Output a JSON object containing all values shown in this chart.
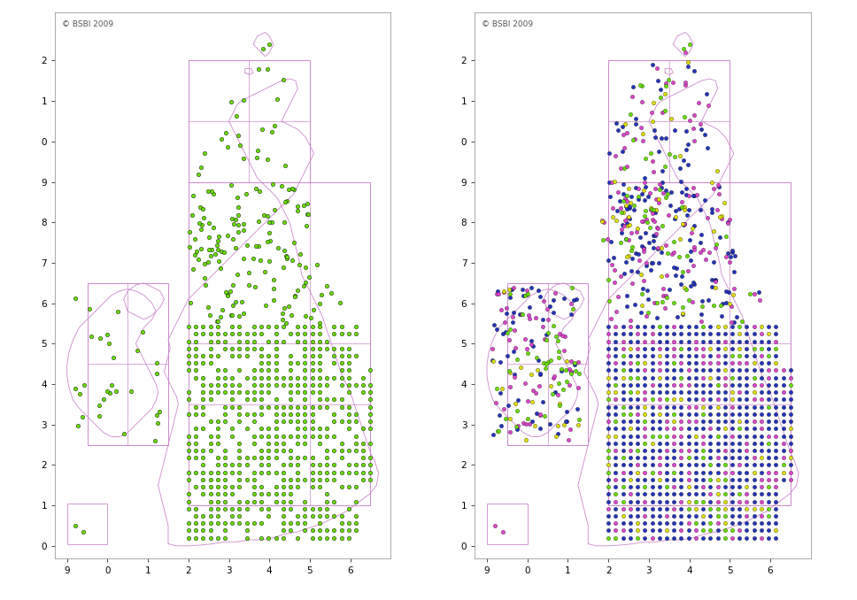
{
  "title": "© BSBI 2009",
  "background_color": "#ffffff",
  "outline_color": "#cc88cc",
  "dot_color_1970": "#66dd00",
  "dot_color_blue": "#2233bb",
  "dot_color_magenta": "#dd44cc",
  "dot_color_yellow": "#dddd00",
  "dot_color_green": "#66dd00",
  "dot_edgecolor": "#000000",
  "dot_size": 10,
  "xlim": [
    -1.3,
    7.0
  ],
  "ylim": [
    -0.3,
    13.2
  ],
  "xtick_pos": [
    -1,
    0,
    1,
    2,
    3,
    4,
    5,
    6
  ],
  "xtick_labels": [
    "9",
    "0",
    "1",
    "2",
    "3",
    "4",
    "5",
    "6"
  ],
  "ytick_pos": [
    0,
    1,
    2,
    3,
    4,
    5,
    6,
    7,
    8,
    9,
    10,
    11,
    12
  ],
  "ytick_labels": [
    "0",
    "1",
    "2",
    "3",
    "4",
    "5",
    "6",
    "7",
    "8",
    "9",
    "0",
    "1",
    "2"
  ]
}
